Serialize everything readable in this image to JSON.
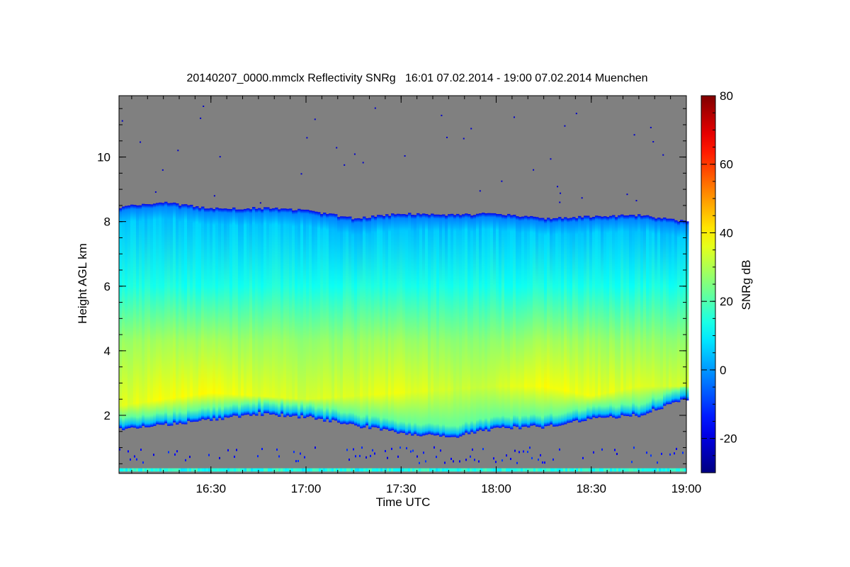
{
  "chart_data": {
    "type": "heatmap",
    "title": "20140207_0000.mmclx Reflectivity SNRg   16:01 07.02.2014 - 19:00 07.02.2014 Muenchen",
    "xlabel": "Time UTC",
    "ylabel": "Height AGL km",
    "x_range": [
      "16:01",
      "19:00"
    ],
    "x_ticks": [
      "16:30",
      "17:00",
      "17:30",
      "18:00",
      "18:30",
      "19:00"
    ],
    "x_tick_hours": [
      16.5,
      17.0,
      17.5,
      18.0,
      18.5,
      19.0
    ],
    "ylim": [
      0.2,
      11.9
    ],
    "y_ticks": [
      2,
      4,
      6,
      8,
      10
    ],
    "colorbar": {
      "label": "SNRg dB",
      "range": [
        -30,
        80
      ],
      "ticks": [
        -20,
        0,
        20,
        40,
        60,
        80
      ],
      "colormap": "jet"
    },
    "no_signal_color": "#808080",
    "echo_layer": {
      "time_hours": [
        16.02,
        16.25,
        16.5,
        16.75,
        17.0,
        17.25,
        17.5,
        17.75,
        18.0,
        18.25,
        18.5,
        18.75,
        19.0
      ],
      "echo_top_km": [
        8.45,
        8.6,
        8.4,
        8.42,
        8.35,
        8.1,
        8.25,
        8.2,
        8.25,
        8.1,
        8.15,
        8.2,
        8.0
      ],
      "echo_base_km": [
        1.55,
        1.7,
        1.85,
        2.05,
        1.95,
        1.7,
        1.45,
        1.3,
        1.6,
        1.65,
        1.9,
        2.0,
        2.5
      ],
      "peak_layer_km": [
        2.3,
        2.5,
        2.7,
        2.6,
        2.5,
        2.6,
        2.7,
        2.8,
        2.9,
        2.9,
        2.6,
        2.9,
        2.9
      ],
      "peak_snr_db": [
        35,
        38,
        38,
        36,
        34,
        35,
        37,
        33,
        34,
        38,
        37,
        35,
        33
      ],
      "top_snr_db": 5,
      "mid_6km_snr_db": 14
    }
  }
}
